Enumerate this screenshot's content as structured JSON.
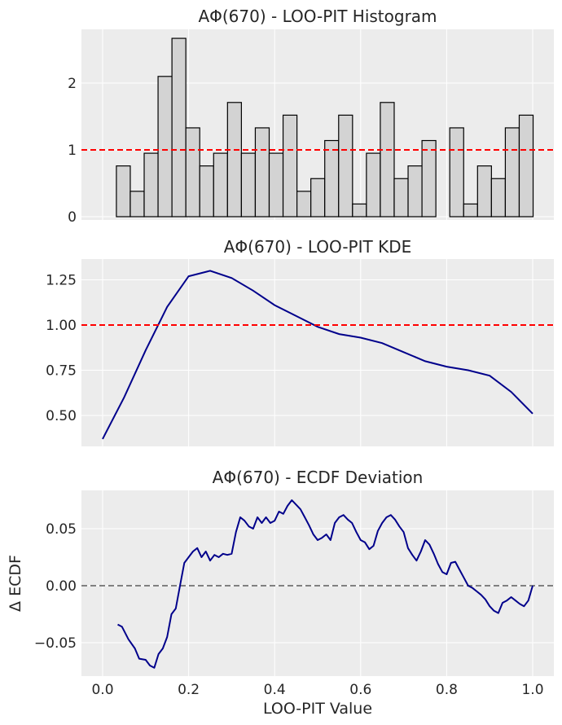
{
  "chart_data": [
    {
      "type": "bar",
      "title": "AΦ(670) - LOO-PIT Histogram",
      "xlabel": "",
      "ylabel": "",
      "ylim": [
        0,
        2.8
      ],
      "yticks": [
        0,
        1,
        2
      ],
      "bin_width": 0.0323,
      "bin_starts": [
        0.032,
        0.0643,
        0.0966,
        0.1289,
        0.1612,
        0.1935,
        0.2258,
        0.2581,
        0.2904,
        0.3227,
        0.355,
        0.3873,
        0.4196,
        0.4519,
        0.4842,
        0.5165,
        0.5488,
        0.5811,
        0.6134,
        0.6457,
        0.678,
        0.7103,
        0.7426,
        0.7749,
        0.8072,
        0.8395,
        0.8718,
        0.9041,
        0.9364,
        0.9687
      ],
      "values": [
        0.76,
        0.38,
        0.95,
        2.1,
        2.67,
        1.33,
        0.76,
        0.95,
        1.71,
        0.95,
        1.33,
        0.95,
        1.52,
        0.38,
        0.57,
        1.14,
        1.52,
        0.19,
        0.95,
        1.71,
        0.57,
        0.76,
        1.14,
        0,
        1.33,
        0.19,
        0.76,
        0.57,
        1.33,
        1.52
      ],
      "reference_line": 1.0,
      "bar_color": "#d3d3d3",
      "edge_color": "#000000",
      "reference_color": "#ff0000"
    },
    {
      "type": "line",
      "title": "AΦ(670) - LOO-PIT KDE",
      "xlabel": "",
      "ylabel": "",
      "ylim": [
        0.34,
        1.36
      ],
      "yticks": [
        "0.50",
        "0.75",
        "1.00",
        "1.25"
      ],
      "x": [
        0.0,
        0.05,
        0.1,
        0.15,
        0.2,
        0.25,
        0.3,
        0.35,
        0.4,
        0.45,
        0.5,
        0.55,
        0.6,
        0.65,
        0.7,
        0.75,
        0.8,
        0.85,
        0.9,
        0.95,
        1.0
      ],
      "y": [
        0.37,
        0.6,
        0.86,
        1.1,
        1.27,
        1.3,
        1.26,
        1.19,
        1.11,
        1.05,
        0.99,
        0.95,
        0.93,
        0.9,
        0.85,
        0.8,
        0.77,
        0.75,
        0.72,
        0.63,
        0.51
      ],
      "reference_line": 1.0,
      "line_color": "#00008b",
      "reference_color": "#ff0000"
    },
    {
      "type": "line",
      "title": "AΦ(670) - ECDF Deviation",
      "xlabel": "LOO-PIT Value",
      "ylabel": "Δ ECDF",
      "ylim": [
        -0.08,
        0.085
      ],
      "xlim": [
        -0.05,
        1.05
      ],
      "xticks": [
        "0.0",
        "0.2",
        "0.4",
        "0.6",
        "0.8",
        "1.0"
      ],
      "yticks": [
        "−0.05",
        "0.00",
        "0.05"
      ],
      "x": [
        0.035,
        0.045,
        0.06,
        0.075,
        0.085,
        0.1,
        0.11,
        0.12,
        0.13,
        0.14,
        0.15,
        0.16,
        0.17,
        0.18,
        0.19,
        0.2,
        0.21,
        0.22,
        0.23,
        0.24,
        0.25,
        0.26,
        0.27,
        0.28,
        0.29,
        0.3,
        0.31,
        0.32,
        0.33,
        0.34,
        0.35,
        0.36,
        0.37,
        0.38,
        0.39,
        0.4,
        0.41,
        0.42,
        0.43,
        0.44,
        0.45,
        0.46,
        0.47,
        0.48,
        0.49,
        0.5,
        0.51,
        0.52,
        0.53,
        0.54,
        0.55,
        0.56,
        0.57,
        0.58,
        0.59,
        0.6,
        0.61,
        0.62,
        0.63,
        0.64,
        0.65,
        0.66,
        0.67,
        0.68,
        0.69,
        0.7,
        0.71,
        0.72,
        0.73,
        0.74,
        0.75,
        0.76,
        0.77,
        0.78,
        0.79,
        0.8,
        0.81,
        0.82,
        0.83,
        0.84,
        0.85,
        0.86,
        0.87,
        0.88,
        0.89,
        0.9,
        0.91,
        0.92,
        0.93,
        0.94,
        0.95,
        0.96,
        0.97,
        0.98,
        0.99,
        1.0
      ],
      "y": [
        -0.034,
        -0.036,
        -0.047,
        -0.055,
        -0.064,
        -0.065,
        -0.07,
        -0.072,
        -0.06,
        -0.055,
        -0.045,
        -0.025,
        -0.02,
        0.0,
        0.02,
        0.025,
        0.03,
        0.033,
        0.025,
        0.03,
        0.022,
        0.027,
        0.025,
        0.028,
        0.027,
        0.028,
        0.047,
        0.06,
        0.057,
        0.052,
        0.05,
        0.06,
        0.055,
        0.06,
        0.055,
        0.057,
        0.065,
        0.063,
        0.07,
        0.075,
        0.071,
        0.067,
        0.06,
        0.053,
        0.045,
        0.04,
        0.042,
        0.045,
        0.04,
        0.055,
        0.06,
        0.062,
        0.058,
        0.055,
        0.047,
        0.04,
        0.038,
        0.032,
        0.035,
        0.048,
        0.055,
        0.06,
        0.062,
        0.058,
        0.052,
        0.047,
        0.033,
        0.027,
        0.022,
        0.03,
        0.04,
        0.036,
        0.028,
        0.019,
        0.012,
        0.01,
        0.02,
        0.021,
        0.014,
        0.007,
        0.0,
        -0.002,
        -0.005,
        -0.008,
        -0.012,
        -0.018,
        -0.022,
        -0.024,
        -0.015,
        -0.013,
        -0.01,
        -0.013,
        -0.016,
        -0.018,
        -0.013,
        0.0
      ],
      "reference_line": 0.0,
      "line_color": "#00008b",
      "reference_color": "#808080"
    }
  ]
}
